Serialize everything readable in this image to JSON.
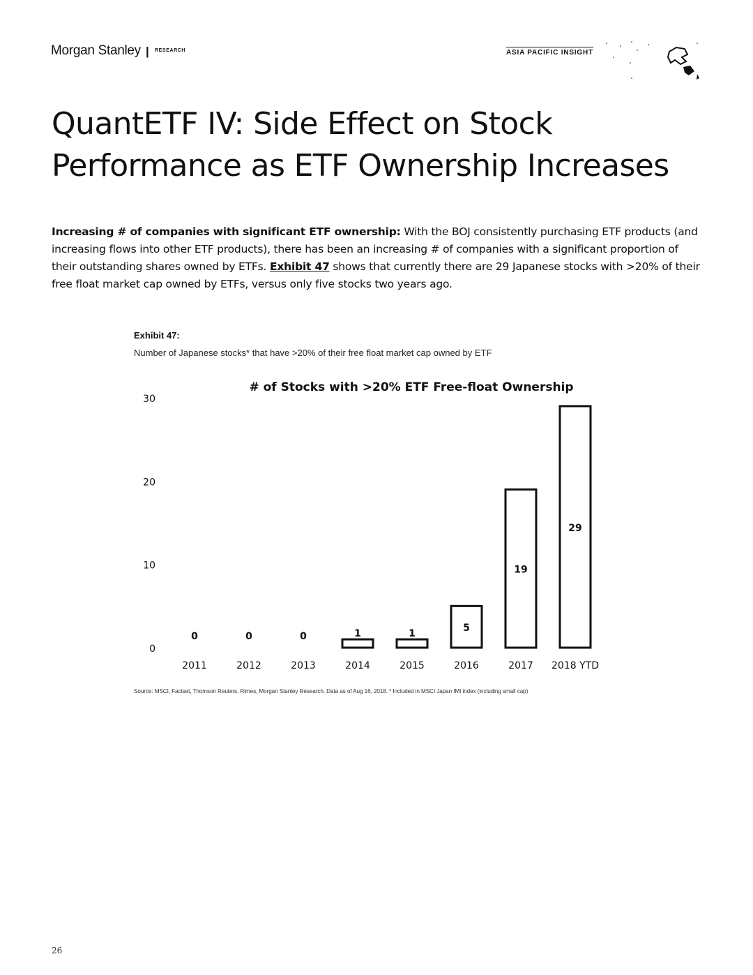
{
  "header": {
    "brand": "Morgan Stanley",
    "separator": "|",
    "research": "RESEARCH",
    "section_tag": "ASIA PACIFIC INSIGHT"
  },
  "title": {
    "line1": "QuantETF IV: Side Effect on Stock",
    "line2": "Performance as ETF Ownership Increases"
  },
  "body": {
    "lead": "Increasing # of companies with significant ETF ownership:",
    "text1": " With the BOJ consistently purchasing ETF products (and increasing flows into other ETF products), there has been an increasing # of companies with a significant proportion of their outstanding shares owned by ETFs. ",
    "exhibit_ref": "Exhibit 47",
    "text2": " shows that currently there are 29 Japanese stocks with >20% of their free float market cap owned by ETFs, versus only five stocks two years ago."
  },
  "exhibit": {
    "label": "Exhibit 47:",
    "subtitle": "Number of Japanese stocks* that have >20% of their free float market cap owned by ETF"
  },
  "chart_data": {
    "type": "bar",
    "title": "# of Stocks with >20% ETF Free-float Ownership",
    "xlabel": "",
    "ylabel": "",
    "categories": [
      "2011",
      "2012",
      "2013",
      "2014",
      "2015",
      "2016",
      "2017",
      "2018 YTD"
    ],
    "values": [
      0,
      0,
      0,
      1,
      1,
      5,
      19,
      29
    ],
    "ylim": [
      0,
      30
    ],
    "yticks": [
      0,
      10,
      20,
      30
    ],
    "data_labels": true,
    "grid": false,
    "legend": "none",
    "bar_fill": "#ffffff",
    "bar_stroke": "#111111"
  },
  "source": "Source: MSCI, Factset, Thomson Reuters, Rimes, Morgan Stanley Research. Data as of Aug 16, 2018. * Included in MSCI Japan IMI index (including small cap)",
  "page_number": "26"
}
